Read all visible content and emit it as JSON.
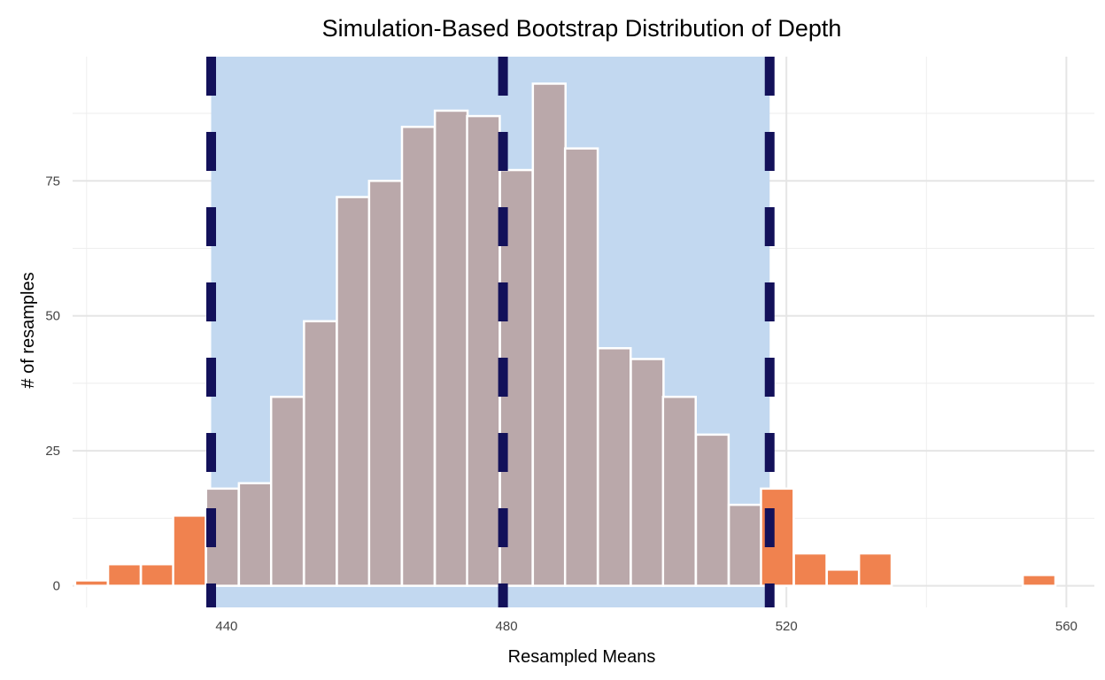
{
  "chart_data": {
    "type": "bar",
    "title": "Simulation-Based Bootstrap Distribution of Depth",
    "xlabel": "Resampled Means",
    "ylabel": "# of resamples",
    "xlim": [
      418,
      564
    ],
    "ylim": [
      -4,
      98
    ],
    "x_ticks": [
      440,
      480,
      520,
      560
    ],
    "x_tick_labels": [
      "440",
      "480",
      "520",
      "560"
    ],
    "y_ticks": [
      0,
      25,
      50,
      75
    ],
    "y_tick_labels": [
      "0",
      "25",
      "50",
      "75"
    ],
    "bin_width": 4.67,
    "bin_centers": [
      420.7,
      425.4,
      430.1,
      434.7,
      439.4,
      444.1,
      448.7,
      453.4,
      458.1,
      462.7,
      467.4,
      472.1,
      476.7,
      481.4,
      486.1,
      490.7,
      495.4,
      500.1,
      504.7,
      509.4,
      514.1,
      518.7,
      523.4,
      528.1,
      532.7,
      537.4,
      542.1,
      546.7,
      551.4,
      556.1
    ],
    "counts": [
      1,
      4,
      4,
      13,
      18,
      19,
      35,
      49,
      72,
      75,
      85,
      88,
      87,
      77,
      93,
      81,
      44,
      42,
      35,
      28,
      15,
      18,
      6,
      3,
      6,
      0,
      0,
      0,
      0,
      2
    ],
    "ci_lower": 437.8,
    "ci_upper": 517.6,
    "observed_mean": 479.5,
    "grid": true,
    "colors": {
      "bar_outside": "#f0824f",
      "bar_inside": "#baa8aa",
      "ci_band": "#c2d8f0",
      "vlines": "#13115a",
      "bar_outline": "#ffffff"
    }
  }
}
